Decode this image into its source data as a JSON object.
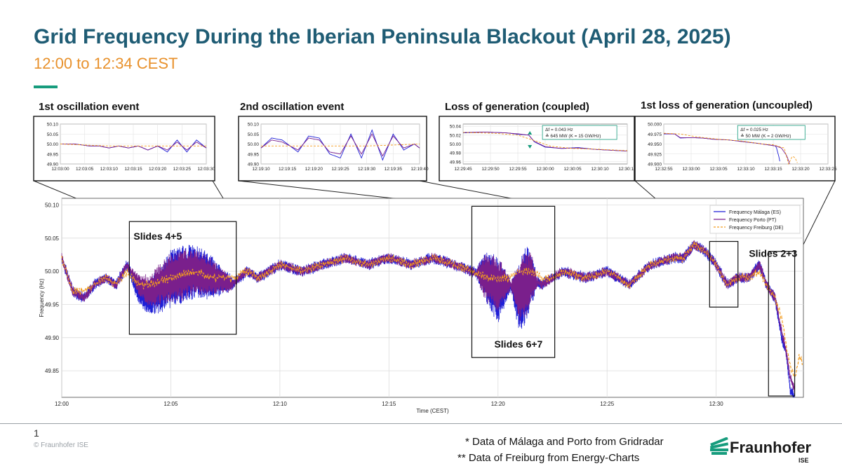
{
  "header": {
    "title": "Grid Frequency During the Iberian Peninsula Blackout (April 28, 2025)",
    "subtitle": "12:00 to 12:34 CEST"
  },
  "colors": {
    "malaga": "#1f1fd6",
    "porto": "#7a1f8c",
    "freiburg": "#f39c1e",
    "title": "#1f5c74",
    "subtitle": "#e8912c",
    "accent": "#179c7d"
  },
  "footer": {
    "page_number": "1",
    "copyright": "© Fraunhofer ISE",
    "note1": "* Data of Málaga and Porto from Gridradar",
    "note2": "** Data of Freiburg from Energy-Charts",
    "logo_text": "Fraunhofer",
    "logo_sub": "ISE"
  },
  "chart_data": [
    {
      "id": "main",
      "type": "line",
      "title": "",
      "xlabel": "Time (CEST)",
      "ylabel": "Frequency (Hz)",
      "xlim": [
        0,
        34
      ],
      "ylim": [
        49.81,
        50.11
      ],
      "grid": true,
      "x_ticks": [
        0,
        5,
        10,
        15,
        20,
        25,
        30
      ],
      "x_tick_labels": [
        "12:00",
        "12:05",
        "12:10",
        "12:15",
        "12:20",
        "12:25",
        "12:30"
      ],
      "y_ticks": [
        49.85,
        49.9,
        49.95,
        50.0,
        50.05,
        50.1
      ],
      "y_tick_labels": [
        "49.85",
        "49.90",
        "49.95",
        "50.00",
        "50.05",
        "50.10"
      ],
      "legend_position": "top-right",
      "series": [
        {
          "name": "Frequency Málaga (ES)",
          "style": "solid",
          "x": [
            0,
            0.5,
            1,
            1.5,
            2,
            2.5,
            3,
            3.5,
            4,
            5,
            6,
            7,
            7.8,
            8.5,
            9,
            10,
            11,
            12,
            13,
            14,
            15,
            16,
            17,
            18,
            18.8,
            19.5,
            20,
            20.5,
            21,
            21.5,
            22,
            22.5,
            23,
            24,
            25,
            26,
            27,
            28,
            28.5,
            29,
            29.5,
            30,
            30.5,
            31,
            31.5,
            32,
            32.3,
            32.7,
            33,
            33.2,
            33.4,
            33.6
          ],
          "y": [
            50.02,
            49.97,
            49.96,
            49.98,
            49.99,
            49.98,
            50.01,
            49.97,
            49.96,
            49.99,
            50.0,
            49.99,
            49.98,
            50.0,
            49.99,
            50.01,
            50.0,
            50.01,
            50.02,
            50.01,
            50.02,
            50.01,
            50.02,
            50.01,
            50.0,
            49.99,
            49.97,
            49.98,
            49.96,
            49.99,
            49.98,
            49.99,
            50.0,
            49.99,
            50.0,
            49.98,
            50.01,
            50.02,
            50.02,
            50.04,
            50.03,
            50.01,
            49.98,
            49.99,
            49.99,
            50.01,
            49.98,
            49.96,
            49.9,
            49.88,
            49.82,
            49.81
          ]
        },
        {
          "name": "Frequency Porto (PT)",
          "style": "solid",
          "x": [
            0,
            0.5,
            1,
            1.5,
            2,
            2.5,
            3,
            3.5,
            4,
            5,
            6,
            7,
            7.8,
            8.5,
            9,
            10,
            11,
            12,
            13,
            14,
            15,
            16,
            17,
            18,
            18.8,
            19.5,
            20,
            20.5,
            21,
            21.5,
            22,
            22.5,
            23,
            24,
            25,
            26,
            27,
            28,
            28.5,
            29,
            29.5,
            30,
            30.5,
            31,
            31.5,
            32,
            32.3,
            32.7,
            33,
            33.2,
            33.4,
            33.6
          ],
          "y": [
            50.02,
            49.97,
            49.96,
            49.98,
            49.99,
            49.98,
            50.01,
            49.98,
            49.97,
            49.99,
            50.0,
            49.99,
            49.98,
            50.0,
            49.99,
            50.01,
            50.0,
            50.01,
            50.02,
            50.01,
            50.02,
            50.01,
            50.02,
            50.01,
            50.0,
            49.99,
            49.98,
            49.98,
            49.97,
            49.99,
            49.98,
            49.99,
            50.0,
            49.99,
            50.0,
            49.98,
            50.01,
            50.02,
            50.02,
            50.04,
            50.03,
            50.01,
            49.98,
            49.99,
            49.99,
            50.01,
            49.98,
            49.96,
            49.91,
            49.88,
            49.84,
            49.82
          ]
        },
        {
          "name": "Frequency Freiburg (DE)",
          "style": "dashed",
          "x": [
            0,
            0.5,
            1,
            1.5,
            2,
            2.5,
            3,
            3.5,
            4,
            5,
            6,
            7,
            7.8,
            8.5,
            9,
            10,
            11,
            12,
            13,
            14,
            15,
            16,
            17,
            18,
            18.8,
            19.5,
            20,
            20.5,
            21,
            21.5,
            22,
            22.5,
            23,
            24,
            25,
            26,
            27,
            28,
            28.5,
            29,
            29.5,
            30,
            30.5,
            31,
            31.5,
            32,
            32.3,
            32.7,
            33,
            33.2,
            33.4,
            33.6,
            33.8,
            34
          ],
          "y": [
            50.02,
            49.97,
            49.97,
            49.98,
            49.99,
            49.98,
            50.0,
            49.98,
            49.98,
            49.99,
            50.0,
            49.99,
            49.99,
            50.0,
            49.99,
            50.01,
            50.0,
            50.01,
            50.02,
            50.01,
            50.02,
            50.01,
            50.02,
            50.01,
            50.0,
            49.99,
            49.99,
            49.99,
            50.0,
            50.0,
            49.99,
            49.99,
            50.0,
            49.99,
            50.0,
            49.98,
            50.01,
            50.02,
            50.02,
            50.04,
            50.03,
            50.01,
            49.98,
            49.99,
            49.99,
            50.0,
            49.98,
            49.96,
            49.93,
            49.89,
            49.86,
            49.84,
            49.87,
            49.86
          ]
        }
      ],
      "annotations": [
        {
          "label": "Slides 4+5",
          "x0": 3.1,
          "x1": 8.0,
          "y0": 49.905,
          "y1": 50.075
        },
        {
          "label": "Slides 6+7",
          "x0": 18.8,
          "x1": 22.6,
          "y0": 49.87,
          "y1": 50.098
        },
        {
          "label": "Slides 2+3",
          "x0": 29.7,
          "x1": 31.0,
          "y0": 49.946,
          "y1": 50.045
        },
        {
          "label": "Slides 2+3",
          "x0": 32.4,
          "x1": 33.6,
          "y0": 49.812,
          "y1": 50.03
        }
      ],
      "label_slides_45": "Slides 4+5",
      "label_slides_67": "Slides 6+7",
      "label_slides_23": "Slides 2+3"
    },
    {
      "id": "inset1",
      "type": "line",
      "title": "1st oscillation event",
      "xlim": [
        0,
        30
      ],
      "ylim": [
        49.9,
        50.1
      ],
      "y_ticks": [
        49.9,
        49.95,
        50.0,
        50.05,
        50.1
      ],
      "y_tick_labels": [
        "49.90",
        "49.95",
        "50.00",
        "50.05",
        "50.10"
      ],
      "x_ticks": [
        0,
        5,
        10,
        15,
        20,
        25,
        30
      ],
      "x_tick_labels": [
        "12:03:00",
        "12:03:05",
        "12:03:10",
        "12:03:15",
        "12:03:20",
        "12:03:25",
        "12:03:30"
      ],
      "series": [
        {
          "name": "Málaga",
          "x": [
            0,
            3,
            6,
            8,
            10,
            12,
            14,
            16,
            18,
            20,
            22,
            24,
            26,
            28,
            30
          ],
          "y": [
            50.0,
            50.0,
            49.99,
            49.99,
            49.98,
            49.99,
            49.98,
            49.99,
            49.97,
            49.99,
            49.96,
            50.02,
            49.96,
            50.02,
            49.98
          ]
        },
        {
          "name": "Porto",
          "x": [
            0,
            3,
            6,
            8,
            10,
            12,
            14,
            16,
            18,
            20,
            22,
            24,
            26,
            28,
            30
          ],
          "y": [
            50.0,
            50.0,
            49.99,
            49.99,
            49.98,
            49.99,
            49.98,
            49.99,
            49.97,
            49.99,
            49.97,
            50.01,
            49.97,
            50.01,
            49.98
          ]
        },
        {
          "name": "Freiburg",
          "x": [
            0,
            10,
            20,
            30
          ],
          "y": [
            50.0,
            49.99,
            49.99,
            49.99
          ]
        }
      ]
    },
    {
      "id": "inset2",
      "type": "line",
      "title": "2nd oscillation event",
      "xlim": [
        0,
        30
      ],
      "ylim": [
        49.9,
        50.1
      ],
      "y_ticks": [
        49.9,
        49.95,
        50.0,
        50.05,
        50.1
      ],
      "y_tick_labels": [
        "49.90",
        "49.95",
        "50.00",
        "50.05",
        "50.10"
      ],
      "x_ticks": [
        0,
        5,
        10,
        15,
        20,
        25,
        30
      ],
      "x_tick_labels": [
        "12:19:10",
        "12:19:15",
        "12:19:20",
        "12:19:25",
        "12:19:30",
        "12:19:35",
        "12:19:40"
      ],
      "series": [
        {
          "name": "Málaga",
          "x": [
            0,
            2,
            4,
            7,
            9,
            11,
            13,
            15,
            17,
            19,
            21,
            23,
            25,
            27,
            29,
            30
          ],
          "y": [
            49.98,
            50.03,
            50.02,
            49.96,
            50.04,
            50.03,
            49.95,
            49.93,
            50.05,
            49.93,
            50.07,
            49.92,
            50.05,
            49.97,
            50.0,
            49.98
          ]
        },
        {
          "name": "Porto",
          "x": [
            0,
            2,
            4,
            7,
            9,
            11,
            13,
            15,
            17,
            19,
            21,
            23,
            25,
            27,
            29,
            30
          ],
          "y": [
            49.98,
            50.02,
            50.01,
            49.97,
            50.03,
            50.02,
            49.96,
            49.95,
            50.04,
            49.95,
            50.05,
            49.94,
            50.04,
            49.98,
            50.0,
            49.98
          ]
        },
        {
          "name": "Freiburg",
          "x": [
            0,
            10,
            20,
            30
          ],
          "y": [
            49.99,
            49.99,
            49.99,
            50.0
          ]
        }
      ]
    },
    {
      "id": "inset3",
      "type": "line",
      "title": "Loss of generation (coupled)",
      "xlim": [
        0,
        30
      ],
      "ylim": [
        49.955,
        50.045
      ],
      "y_ticks": [
        49.96,
        49.98,
        50.0,
        50.02,
        50.04
      ],
      "y_tick_labels": [
        "49.96",
        "49.98",
        "50.00",
        "50.02",
        "50.04"
      ],
      "x_ticks": [
        0,
        5,
        10,
        15,
        20,
        25,
        30
      ],
      "x_tick_labels": [
        "12:29:45",
        "12:29:50",
        "12:29:55",
        "12:30:00",
        "12:30:05",
        "12:30:10",
        "12:30:15"
      ],
      "series": [
        {
          "name": "Málaga",
          "x": [
            0,
            4,
            8,
            10,
            12,
            13,
            15,
            18,
            21,
            24,
            27,
            30
          ],
          "y": [
            50.025,
            50.027,
            50.025,
            50.022,
            50.02,
            50.005,
            49.993,
            49.99,
            49.992,
            49.988,
            49.986,
            49.984
          ]
        },
        {
          "name": "Porto",
          "x": [
            0,
            4,
            8,
            10,
            12,
            13,
            15,
            18,
            21,
            24,
            27,
            30
          ],
          "y": [
            50.026,
            50.027,
            50.025,
            50.023,
            50.02,
            50.006,
            49.994,
            49.99,
            49.991,
            49.988,
            49.986,
            49.984
          ]
        },
        {
          "name": "Freiburg",
          "x": [
            0,
            6,
            10,
            13,
            16,
            20,
            25,
            30
          ],
          "y": [
            50.026,
            50.024,
            50.02,
            50.008,
            49.995,
            49.99,
            49.988,
            49.985
          ]
        }
      ],
      "info_line1": "Δf = 0.043 Hz",
      "info_line2": "≙ 645 MW (K =  15 GW/Hz)"
    },
    {
      "id": "inset4",
      "type": "line",
      "title": "1st loss of generation (uncoupled)",
      "xlim": [
        0,
        30
      ],
      "ylim": [
        49.9,
        50.0
      ],
      "y_ticks": [
        49.9,
        49.925,
        49.95,
        49.975,
        50.0
      ],
      "y_tick_labels": [
        "49.900",
        "49.925",
        "49.950",
        "49.975",
        "50.000"
      ],
      "x_ticks": [
        0,
        5,
        10,
        15,
        20,
        25,
        30
      ],
      "x_tick_labels": [
        "12:32:55",
        "12:33:00",
        "12:33:05",
        "12:33:10",
        "12:33:15",
        "12:33:20",
        "12:33:25"
      ],
      "series": [
        {
          "name": "Málaga",
          "x": [
            0,
            2,
            3,
            5,
            7,
            9,
            12,
            15,
            17,
            19,
            20.5,
            21,
            21.3
          ],
          "y": [
            49.975,
            49.975,
            49.965,
            49.966,
            49.965,
            49.962,
            49.96,
            49.955,
            49.952,
            49.948,
            49.945,
            49.92,
            49.9
          ]
        },
        {
          "name": "Porto",
          "x": [
            0,
            2,
            3,
            5,
            7,
            9,
            12,
            15,
            17,
            19,
            20.5,
            21.5,
            22.5,
            23
          ],
          "y": [
            49.976,
            49.975,
            49.966,
            49.966,
            49.965,
            49.962,
            49.96,
            49.955,
            49.952,
            49.948,
            49.945,
            49.94,
            49.92,
            49.9
          ]
        },
        {
          "name": "Freiburg",
          "x": [
            0,
            3,
            6,
            10,
            14,
            18,
            20,
            22,
            22.8,
            23.5,
            24,
            24.5
          ],
          "y": [
            49.977,
            49.975,
            49.968,
            49.962,
            49.958,
            49.95,
            49.948,
            49.94,
            49.9,
            49.92,
            49.915,
            49.9
          ]
        }
      ],
      "info_line1": "Δf = 0.025 Hz",
      "info_line2": "≙ 50 MW (K =  2 GW/Hz)"
    }
  ]
}
